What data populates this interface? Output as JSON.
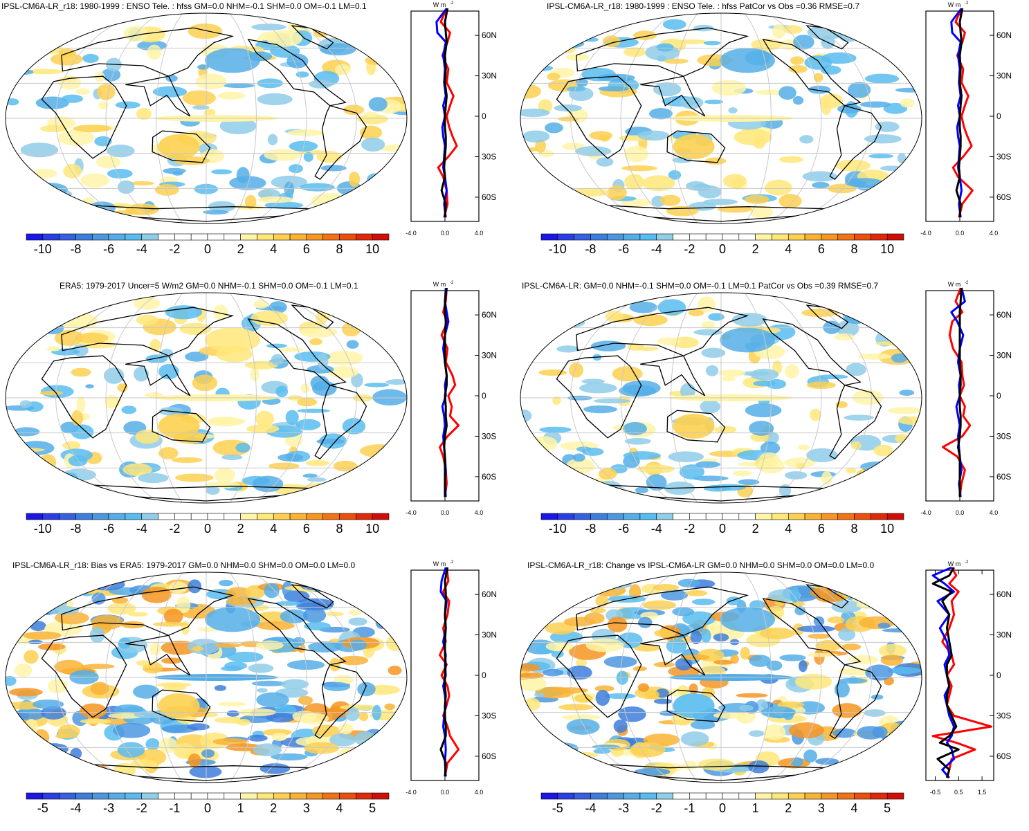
{
  "colors": {
    "scale": [
      "#1c16e6",
      "#2a3ee6",
      "#3560e0",
      "#3d7edc",
      "#4c98e0",
      "#55aee8",
      "#59bcf0",
      "#8fcde9",
      "#ffffff",
      "#ffffff",
      "#fff4a8",
      "#ffe77a",
      "#fdd050",
      "#f9b334",
      "#f69521",
      "#f17312",
      "#ea4f0b",
      "#e02a07",
      "#d10d05"
    ],
    "land": "#000000",
    "grid": "#c8c8c8",
    "model_line": "#0000ff",
    "obs_line": "#ff0000",
    "total_line": "#000000"
  },
  "panels": [
    {
      "title": "IPSL-CM6A-LR_r18: 1980-1999 : ENSO Tele. : hfss GM=0.0 NHM=-0.1 SHM=0.0 OM=-0.1 LM=0.1",
      "colorbar_labels": [
        "-10",
        "-8",
        "-6",
        "-4",
        "-2",
        "0",
        "2",
        "4",
        "6",
        "8",
        "10"
      ],
      "profile_unit": "W m",
      "profile_unit_exp": "-2",
      "profile_xticks": [
        "-4.0",
        "0.0",
        "4.0"
      ],
      "profile_yticks": [
        "60N",
        "30N",
        "0",
        "30S",
        "60S"
      ]
    },
    {
      "title": "IPSL-CM6A-LR_r18: 1980-1999 : ENSO Tele. : hfss PatCor vs Obs =0.36 RMSE=0.7",
      "colorbar_labels": [
        "-10",
        "-8",
        "-6",
        "-4",
        "-2",
        "0",
        "2",
        "4",
        "6",
        "8",
        "10"
      ],
      "profile_unit": "W m",
      "profile_unit_exp": "-2",
      "profile_xticks": [
        "-4.0",
        "0.0",
        "4.0"
      ],
      "profile_yticks": [
        "60N",
        "30N",
        "0",
        "30S",
        "60S"
      ]
    },
    {
      "title": "ERA5: 1979-2017 Uncer=5 W/m2 GM=0.0 NHM=-0.1 SHM=0.0 OM=-0.1 LM=0.1",
      "colorbar_labels": [
        "-10",
        "-8",
        "-6",
        "-4",
        "-2",
        "0",
        "2",
        "4",
        "6",
        "8",
        "10"
      ],
      "profile_unit": "W m",
      "profile_unit_exp": "-2",
      "profile_xticks": [
        "-4.0",
        "0.0",
        "4.0"
      ],
      "profile_yticks": [
        "60N",
        "30N",
        "0",
        "30S",
        "60S"
      ]
    },
    {
      "title": "IPSL-CM6A-LR: GM=0.0 NHM=-0.1 SHM=0.0 OM=-0.1 LM=0.1 PatCor vs Obs =0.39 RMSE=0.7",
      "colorbar_labels": [
        "-10",
        "-8",
        "-6",
        "-4",
        "-2",
        "0",
        "2",
        "4",
        "6",
        "8",
        "10"
      ],
      "profile_unit": "W m",
      "profile_unit_exp": "-2",
      "profile_xticks": [
        "-4.0",
        "0.0",
        "4.0"
      ],
      "profile_yticks": [
        "60N",
        "30N",
        "0",
        "30S",
        "60S"
      ]
    },
    {
      "title": "IPSL-CM6A-LR_r18: Bias vs ERA5: 1979-2017 GM=0.0 NHM=0.0 SHM=0.0 OM=0.0 LM=0.0",
      "colorbar_labels": [
        "-5",
        "-4",
        "-3",
        "-2",
        "-1",
        "0",
        "1",
        "2",
        "3",
        "4",
        "5"
      ],
      "profile_unit": "W m",
      "profile_unit_exp": "-2",
      "profile_xticks": [
        "-4.0",
        "0.0",
        "4.0"
      ],
      "profile_yticks": [
        "60N",
        "30N",
        "0",
        "30S",
        "60S"
      ]
    },
    {
      "title": "IPSL-CM6A-LR_r18: Change vs IPSL-CM6A-LR GM=0.0 NHM=0.0 SHM=0.0 OM=0.0 LM=0.0",
      "colorbar_labels": [
        "-5",
        "-4",
        "-3",
        "-2",
        "-1",
        "0",
        "1",
        "2",
        "3",
        "4",
        "5"
      ],
      "profile_unit": "W m",
      "profile_unit_exp": "-2",
      "profile_xticks": [
        "-0.5",
        "0.5",
        "1.5"
      ],
      "profile_yticks": [
        "60N",
        "30N",
        "0",
        "30S",
        "60S"
      ]
    }
  ],
  "chart_data": [
    {
      "type": "heatmap",
      "title": "IPSL-CM6A-LR_r18: 1980-1999 : ENSO Tele. : hfss GM=0.0 NHM=-0.1 SHM=0.0 OM=-0.1 LM=0.1",
      "colorbar": {
        "min": -11,
        "max": 11,
        "step": 1,
        "tick_labels": [
          -10,
          -8,
          -6,
          -4,
          -2,
          0,
          2,
          4,
          6,
          8,
          10
        ]
      },
      "zonal_profile": {
        "xlim": [
          -4,
          4
        ],
        "ylim": [
          -78,
          78
        ],
        "xticks": [
          -4.0,
          0.0,
          4.0
        ],
        "yticks": [
          "60N",
          "30N",
          "0",
          "30S",
          "60S"
        ],
        "lat": [
          80,
          70,
          62,
          55,
          45,
          35,
          25,
          15,
          8,
          0,
          -8,
          -15,
          -22,
          -30,
          -38,
          -45,
          -55,
          -65,
          -75
        ],
        "model_blue": [
          0.2,
          -1.0,
          -0.9,
          0.1,
          -0.2,
          0.0,
          -0.1,
          0.1,
          -0.2,
          0.0,
          -0.3,
          -0.2,
          0.0,
          -0.1,
          -0.2,
          0.0,
          0.2,
          -0.1,
          0.1
        ],
        "obs_red": [
          0.2,
          -0.5,
          0.6,
          0.3,
          -0.3,
          0.4,
          0.2,
          1.0,
          0.6,
          0.2,
          0.5,
          0.9,
          1.4,
          0.4,
          -0.8,
          -0.2,
          0.2,
          0.3,
          -0.1
        ],
        "total_black": [
          0.3,
          0.0,
          0.1,
          0.2,
          0.0,
          0.1,
          0.0,
          0.2,
          0.1,
          0.0,
          0.0,
          0.1,
          0.1,
          0.0,
          -0.1,
          0.0,
          -0.4,
          0.1,
          0.0
        ]
      }
    },
    {
      "type": "heatmap",
      "title": "IPSL-CM6A-LR_r18: 1980-1999 : ENSO Tele. : hfss PatCor vs Obs =0.36 RMSE=0.7",
      "colorbar": {
        "min": -11,
        "max": 11,
        "step": 1,
        "tick_labels": [
          -10,
          -8,
          -6,
          -4,
          -2,
          0,
          2,
          4,
          6,
          8,
          10
        ]
      },
      "zonal_profile": {
        "xlim": [
          -4,
          4
        ],
        "ylim": [
          -78,
          78
        ],
        "xticks": [
          -4.0,
          0.0,
          4.0
        ],
        "yticks": [
          "60N",
          "30N",
          "0",
          "30S",
          "60S"
        ],
        "lat": [
          80,
          70,
          62,
          55,
          45,
          35,
          25,
          15,
          8,
          0,
          -8,
          -15,
          -22,
          -30,
          -38,
          -45,
          -55,
          -65,
          -75
        ],
        "model_blue": [
          0.2,
          -1.0,
          -0.9,
          0.1,
          -0.2,
          0.0,
          -0.1,
          0.1,
          -0.2,
          0.0,
          -0.3,
          -0.2,
          0.0,
          -0.1,
          -0.2,
          0.0,
          0.2,
          -0.1,
          0.1
        ],
        "obs_red": [
          0.2,
          -0.5,
          0.6,
          0.3,
          -0.3,
          0.4,
          0.2,
          1.0,
          0.6,
          0.2,
          0.5,
          0.9,
          1.4,
          0.4,
          -0.8,
          -0.2,
          1.5,
          0.3,
          -0.1
        ],
        "total_black": [
          0.3,
          0.0,
          0.1,
          0.2,
          0.0,
          0.1,
          0.0,
          0.2,
          0.1,
          0.0,
          0.0,
          0.1,
          0.1,
          0.0,
          -0.1,
          0.0,
          -0.4,
          0.1,
          0.0
        ]
      }
    },
    {
      "type": "heatmap",
      "title": "ERA5: 1979-2017 Uncer=5 W/m2 GM=0.0 NHM=-0.1 SHM=0.0 OM=-0.1 LM=0.1",
      "colorbar": {
        "min": -11,
        "max": 11,
        "step": 1,
        "tick_labels": [
          -10,
          -8,
          -6,
          -4,
          -2,
          0,
          2,
          4,
          6,
          8,
          10
        ]
      },
      "zonal_profile": {
        "xlim": [
          -4,
          4
        ],
        "ylim": [
          -78,
          78
        ],
        "xticks": [
          -4.0,
          0.0,
          4.0
        ],
        "yticks": [
          "60N",
          "30N",
          "0",
          "30S",
          "60S"
        ],
        "lat": [
          80,
          70,
          62,
          55,
          45,
          35,
          25,
          15,
          8,
          0,
          -8,
          -15,
          -22,
          -30,
          -38,
          -45,
          -55,
          -65,
          -75
        ],
        "model_blue": [
          0.1,
          0.0,
          0.2,
          0.4,
          0.0,
          -0.2,
          0.0,
          0.2,
          0.0,
          0.1,
          -0.3,
          -0.1,
          0.0,
          -0.2,
          -0.1,
          0.0,
          0.1,
          0.0,
          0.1
        ],
        "obs_red": [
          0.2,
          0.1,
          -0.2,
          0.3,
          -0.4,
          0.3,
          0.1,
          0.9,
          1.2,
          0.4,
          0.8,
          0.6,
          1.6,
          0.3,
          -0.6,
          -0.2,
          0.1,
          0.2,
          0.0
        ],
        "total_black": [
          0.2,
          0.0,
          0.0,
          0.1,
          0.0,
          0.0,
          0.0,
          0.2,
          0.2,
          0.0,
          0.1,
          0.1,
          0.2,
          0.0,
          -0.1,
          0.0,
          0.0,
          0.0,
          0.0
        ]
      }
    },
    {
      "type": "heatmap",
      "title": "IPSL-CM6A-LR: GM=0.0 NHM=-0.1 SHM=0.0 OM=-0.1 LM=0.1 PatCor vs Obs =0.39 RMSE=0.7",
      "colorbar": {
        "min": -11,
        "max": 11,
        "step": 1,
        "tick_labels": [
          -10,
          -8,
          -6,
          -4,
          -2,
          0,
          2,
          4,
          6,
          8,
          10
        ]
      },
      "zonal_profile": {
        "xlim": [
          -4,
          4
        ],
        "ylim": [
          -78,
          78
        ],
        "xticks": [
          -4.0,
          0.0,
          4.0
        ],
        "yticks": [
          "60N",
          "30N",
          "0",
          "30S",
          "60S"
        ],
        "lat": [
          80,
          70,
          62,
          55,
          45,
          35,
          25,
          15,
          8,
          0,
          -8,
          -15,
          -22,
          -30,
          -38,
          -45,
          -55,
          -65,
          -75
        ],
        "model_blue": [
          0.2,
          0.6,
          -1.0,
          -0.3,
          0.4,
          0.0,
          -0.2,
          0.1,
          -0.1,
          0.0,
          -0.4,
          -0.2,
          0.0,
          -0.2,
          -0.1,
          0.0,
          0.2,
          -0.1,
          0.1
        ],
        "obs_red": [
          0.1,
          -0.5,
          0.3,
          -0.9,
          -1.2,
          -0.8,
          0.2,
          0.3,
          0.5,
          0.0,
          0.6,
          0.4,
          1.2,
          0.3,
          -2.0,
          -0.3,
          0.6,
          0.2,
          0.0
        ],
        "total_black": [
          0.2,
          0.1,
          0.0,
          0.0,
          0.0,
          0.0,
          0.0,
          0.1,
          0.1,
          0.0,
          0.0,
          0.1,
          0.1,
          0.0,
          -0.2,
          0.0,
          0.0,
          0.0,
          0.0
        ]
      }
    },
    {
      "type": "heatmap",
      "title": "IPSL-CM6A-LR_r18: Bias vs ERA5: 1979-2017 GM=0.0 NHM=0.0 SHM=0.0 OM=0.0 LM=0.0",
      "colorbar": {
        "min": -5.5,
        "max": 5.5,
        "step": 0.5,
        "tick_labels": [
          -5,
          -4,
          -3,
          -2,
          -1,
          0,
          1,
          2,
          3,
          4,
          5
        ]
      },
      "zonal_profile": {
        "xlim": [
          -4,
          4
        ],
        "ylim": [
          -78,
          78
        ],
        "xticks": [
          -4.0,
          0.0,
          4.0
        ],
        "yticks": [
          "60N",
          "30N",
          "0",
          "30S",
          "60S"
        ],
        "lat": [
          80,
          70,
          62,
          55,
          45,
          35,
          25,
          15,
          8,
          0,
          -8,
          -15,
          -22,
          -30,
          -38,
          -45,
          -55,
          -65,
          -75
        ],
        "model_blue": [
          0.1,
          -0.4,
          -0.5,
          0.2,
          0.0,
          0.1,
          -0.2,
          0.1,
          0.0,
          0.1,
          -0.2,
          0.0,
          0.1,
          -0.1,
          -0.2,
          0.0,
          0.1,
          0.0,
          0.1
        ],
        "obs_red": [
          0.2,
          0.4,
          -0.2,
          0.5,
          0.3,
          -0.2,
          0.1,
          -0.6,
          0.2,
          -0.4,
          0.3,
          0.5,
          0.2,
          -0.2,
          0.3,
          0.6,
          1.6,
          0.3,
          0.0
        ],
        "total_black": [
          0.3,
          0.0,
          0.1,
          0.1,
          0.0,
          0.1,
          0.0,
          0.0,
          0.1,
          0.0,
          0.0,
          0.1,
          0.0,
          0.0,
          0.1,
          0.1,
          -0.5,
          0.1,
          0.0
        ]
      }
    },
    {
      "type": "heatmap",
      "title": "IPSL-CM6A-LR_r18: Change vs IPSL-CM6A-LR GM=0.0 NHM=0.0 SHM=0.0 OM=0.0 LM=0.0",
      "colorbar": {
        "min": -5.5,
        "max": 5.5,
        "step": 0.5,
        "tick_labels": [
          -5,
          -4,
          -3,
          -2,
          -1,
          0,
          1,
          2,
          3,
          4,
          5
        ]
      },
      "zonal_profile": {
        "xlim": [
          -0.9,
          2.0
        ],
        "ylim": [
          -78,
          78
        ],
        "xticks": [
          -0.5,
          0.5,
          1.5
        ],
        "yticks": [
          "60N",
          "30N",
          "0",
          "30S",
          "60S"
        ],
        "lat": [
          80,
          74,
          68,
          62,
          55,
          45,
          35,
          25,
          15,
          8,
          0,
          -8,
          -15,
          -22,
          -30,
          -38,
          -45,
          -50,
          -55,
          -62,
          -70,
          -76
        ],
        "model_blue": [
          0.2,
          -0.6,
          -0.1,
          0.3,
          -0.4,
          0.1,
          -0.3,
          0.0,
          0.1,
          -0.1,
          0.0,
          0.1,
          -0.1,
          0.0,
          0.1,
          0.3,
          0.2,
          0.0,
          0.2,
          0.3,
          -0.2,
          0.1
        ],
        "obs_red": [
          0.2,
          0.4,
          0.1,
          0.5,
          0.2,
          0.3,
          0.1,
          -0.2,
          0.2,
          0.3,
          0.0,
          0.2,
          0.1,
          0.0,
          0.3,
          1.9,
          -0.6,
          0.4,
          1.2,
          0.2,
          0.1,
          0.0
        ],
        "total_black": [
          0.3,
          0.1,
          -0.6,
          0.2,
          -0.2,
          0.1,
          0.0,
          0.1,
          0.2,
          0.0,
          0.0,
          0.1,
          0.0,
          0.0,
          0.2,
          0.4,
          0.1,
          -0.3,
          0.5,
          -0.4,
          0.1,
          0.0
        ]
      }
    }
  ]
}
